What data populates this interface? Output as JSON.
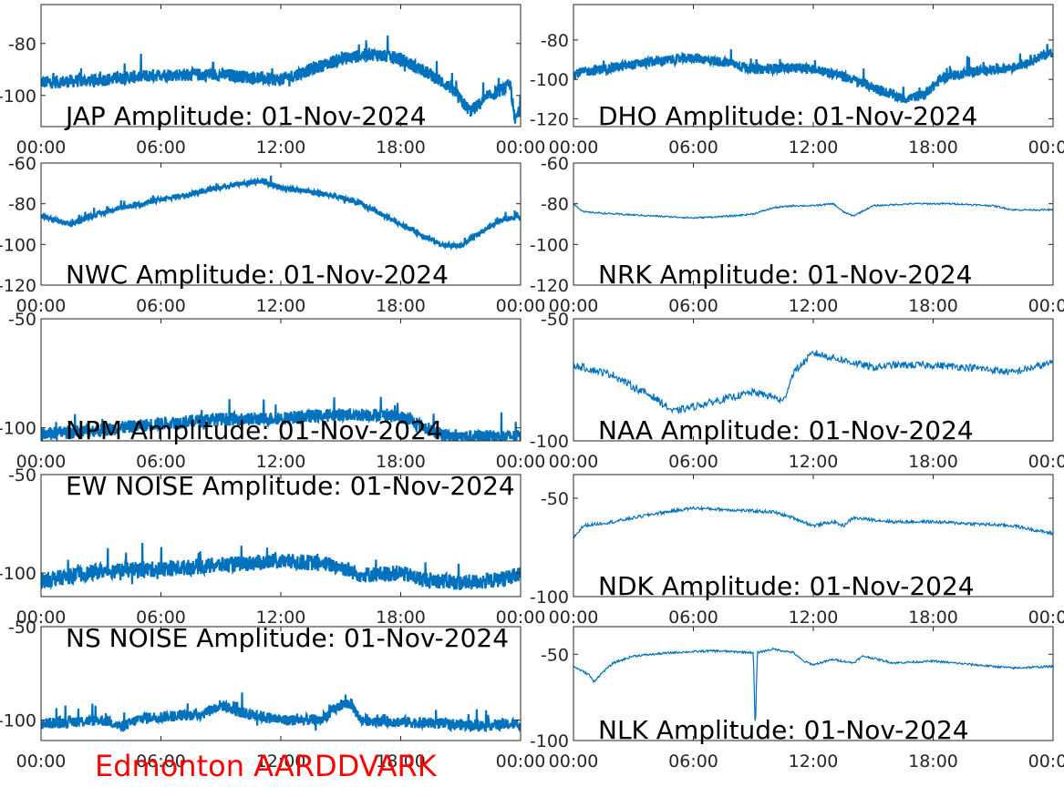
{
  "footer_label": "Edmonton AARDDVARK",
  "colors": {
    "series": "#0072bd",
    "footer": "#ff0000",
    "axes": "#262626"
  },
  "chart_data": [
    {
      "type": "line",
      "panel": "left-1",
      "title": "JAP Amplitude: 01-Nov-2024",
      "xlim": [
        0,
        24
      ],
      "ylim": [
        -112,
        -65
      ],
      "yticks": [
        -80,
        -100
      ],
      "ytick_labels": [
        "-80",
        "-100"
      ],
      "xticks": [
        0,
        6,
        12,
        18,
        24
      ],
      "xtick_labels": [
        "00:00",
        "06:00",
        "12:00",
        "18:00",
        "00:00"
      ],
      "noise": 2.5,
      "dense": true,
      "series": [
        {
          "points": [
            [
              0,
              -95
            ],
            [
              3,
              -94
            ],
            [
              6,
              -92
            ],
            [
              9,
              -92
            ],
            [
              12,
              -94
            ],
            [
              13.5,
              -90
            ],
            [
              15,
              -86
            ],
            [
              16.5,
              -84
            ],
            [
              18,
              -86
            ],
            [
              19.5,
              -92
            ],
            [
              20.5,
              -97
            ],
            [
              21,
              -102
            ],
            [
              21.5,
              -106
            ],
            [
              22.5,
              -100
            ],
            [
              23.5,
              -96
            ],
            [
              23.7,
              -110
            ],
            [
              24,
              -105
            ]
          ]
        }
      ]
    },
    {
      "type": "line",
      "panel": "right-1",
      "title": "DHO Amplitude: 01-Nov-2024",
      "xlim": [
        0,
        24
      ],
      "ylim": [
        -124,
        -62
      ],
      "yticks": [
        -80,
        -100,
        -120
      ],
      "ytick_labels": [
        "-80",
        "-100",
        "-120"
      ],
      "xticks": [
        0,
        6,
        12,
        18,
        24
      ],
      "xtick_labels": [
        "00:00",
        "06:00",
        "12:00",
        "18:00",
        "00:00"
      ],
      "noise": 2.5,
      "dense": true,
      "series": [
        {
          "points": [
            [
              0,
              -97
            ],
            [
              2,
              -94
            ],
            [
              4,
              -91
            ],
            [
              6,
              -89
            ],
            [
              8,
              -92
            ],
            [
              9,
              -95
            ],
            [
              11,
              -94
            ],
            [
              12,
              -95
            ],
            [
              13,
              -97
            ],
            [
              14,
              -100
            ],
            [
              15,
              -104
            ],
            [
              16.5,
              -110
            ],
            [
              17.5,
              -108
            ],
            [
              18.5,
              -99
            ],
            [
              20,
              -96
            ],
            [
              22,
              -94
            ],
            [
              24,
              -86
            ]
          ]
        }
      ]
    },
    {
      "type": "line",
      "panel": "left-2",
      "title": "NWC Amplitude: 01-Nov-2024",
      "xlim": [
        0,
        24
      ],
      "ylim": [
        -120,
        -60
      ],
      "yticks": [
        -60,
        -80,
        -100,
        -120
      ],
      "ytick_labels": [
        "-60",
        "-80",
        "-100",
        "-120"
      ],
      "xticks": [
        0,
        6,
        12,
        18,
        24
      ],
      "xtick_labels": [
        "00:00",
        "06:00",
        "12:00",
        "18:00",
        "00:00"
      ],
      "noise": 1.2,
      "dense": true,
      "series": [
        {
          "points": [
            [
              0,
              -86
            ],
            [
              1,
              -89
            ],
            [
              1.5,
              -90
            ],
            [
              2.5,
              -86
            ],
            [
              4,
              -82
            ],
            [
              6,
              -78
            ],
            [
              8,
              -74
            ],
            [
              10,
              -70
            ],
            [
              11,
              -69
            ],
            [
              12,
              -72
            ],
            [
              14,
              -75
            ],
            [
              15,
              -77
            ],
            [
              16,
              -80
            ],
            [
              17,
              -85
            ],
            [
              18,
              -90
            ],
            [
              19,
              -95
            ],
            [
              20,
              -100
            ],
            [
              21,
              -101
            ],
            [
              22,
              -94
            ],
            [
              23,
              -88
            ],
            [
              24,
              -86
            ]
          ]
        }
      ]
    },
    {
      "type": "line",
      "panel": "right-2",
      "title": "NRK Amplitude: 01-Nov-2024",
      "xlim": [
        0,
        24
      ],
      "ylim": [
        -120,
        -60
      ],
      "yticks": [
        -60,
        -80,
        -100,
        -120
      ],
      "ytick_labels": [
        "-60",
        "-80",
        "-100",
        "-120"
      ],
      "xticks": [
        0,
        6,
        12,
        18,
        24
      ],
      "xtick_labels": [
        "00:00",
        "06:00",
        "12:00",
        "18:00",
        "00:00"
      ],
      "noise": 0.4,
      "dense": false,
      "series": [
        {
          "points": [
            [
              0,
              -80
            ],
            [
              0.5,
              -84
            ],
            [
              2,
              -85
            ],
            [
              4,
              -86
            ],
            [
              6,
              -87
            ],
            [
              8,
              -86
            ],
            [
              9,
              -85
            ],
            [
              10,
              -82
            ],
            [
              11,
              -81
            ],
            [
              12,
              -81
            ],
            [
              13,
              -80
            ],
            [
              13.5,
              -84
            ],
            [
              14,
              -86
            ],
            [
              15,
              -81
            ],
            [
              17,
              -80
            ],
            [
              19,
              -80
            ],
            [
              21,
              -81
            ],
            [
              22,
              -83
            ],
            [
              24,
              -83
            ]
          ]
        }
      ]
    },
    {
      "type": "line",
      "panel": "left-3",
      "title": "NPM Amplitude: 01-Nov-2024",
      "xlim": [
        0,
        24
      ],
      "ylim": [
        -106,
        -50
      ],
      "yticks": [
        -50,
        -100
      ],
      "ytick_labels": [
        "-50",
        "-100"
      ],
      "xticks": [
        0,
        6,
        12,
        18,
        24
      ],
      "xtick_labels": [
        "00:00",
        "06:00",
        "12:00",
        "18:00",
        "00:00"
      ],
      "noise": 3.0,
      "dense": true,
      "series": [
        {
          "points": [
            [
              0,
              -103
            ],
            [
              3,
              -101
            ],
            [
              6,
              -98
            ],
            [
              9,
              -96
            ],
            [
              11,
              -96
            ],
            [
              13,
              -95
            ],
            [
              15,
              -94
            ],
            [
              17,
              -94
            ],
            [
              18,
              -95
            ],
            [
              19,
              -99
            ],
            [
              20,
              -103
            ],
            [
              21,
              -104
            ],
            [
              24,
              -104
            ]
          ]
        }
      ]
    },
    {
      "type": "line",
      "panel": "right-3",
      "title": "NAA Amplitude: 01-Nov-2024",
      "xlim": [
        0,
        24
      ],
      "ylim": [
        -100,
        -50
      ],
      "yticks": [
        -50,
        -100
      ],
      "ytick_labels": [
        "-50",
        "-100"
      ],
      "xticks": [
        0,
        6,
        12,
        18,
        24
      ],
      "xtick_labels": [
        "00:00",
        "06:00",
        "12:00",
        "18:00",
        "00:00"
      ],
      "noise": 1.5,
      "dense": false,
      "series": [
        {
          "points": [
            [
              0,
              -69
            ],
            [
              1,
              -71
            ],
            [
              2,
              -73
            ],
            [
              3,
              -78
            ],
            [
              4,
              -82
            ],
            [
              5,
              -88
            ],
            [
              6,
              -86
            ],
            [
              7,
              -84
            ],
            [
              8,
              -82
            ],
            [
              9,
              -80
            ],
            [
              10,
              -82
            ],
            [
              10.5,
              -84
            ],
            [
              11,
              -72
            ],
            [
              12,
              -64
            ],
            [
              13,
              -66
            ],
            [
              14,
              -68
            ],
            [
              15,
              -70
            ],
            [
              16,
              -69
            ],
            [
              18,
              -69
            ],
            [
              20,
              -70
            ],
            [
              22,
              -72
            ],
            [
              23,
              -70
            ],
            [
              24,
              -68
            ]
          ]
        }
      ]
    },
    {
      "type": "line",
      "panel": "left-4",
      "title": "EW NOISE Amplitude: 01-Nov-2024",
      "xlim": [
        0,
        24
      ],
      "ylim": [
        -112,
        -50
      ],
      "yticks": [
        -50,
        -100
      ],
      "ytick_labels": [
        "-50",
        "-100"
      ],
      "xticks": [
        0,
        6,
        12,
        18,
        24
      ],
      "xtick_labels": [
        "00:00",
        "06:00",
        "12:00",
        "18:00",
        "00:00"
      ],
      "noise": 4.0,
      "dense": true,
      "series": [
        {
          "points": [
            [
              0,
              -104
            ],
            [
              3,
              -99
            ],
            [
              6,
              -98
            ],
            [
              9,
              -96
            ],
            [
              12,
              -94
            ],
            [
              14,
              -95
            ],
            [
              15,
              -97
            ],
            [
              16,
              -101
            ],
            [
              18,
              -100
            ],
            [
              19,
              -103
            ],
            [
              21,
              -105
            ],
            [
              22.5,
              -104
            ],
            [
              24,
              -101
            ]
          ]
        }
      ]
    },
    {
      "type": "line",
      "panel": "right-4",
      "title": "NDK Amplitude: 01-Nov-2024",
      "xlim": [
        0,
        24
      ],
      "ylim": [
        -100,
        -38
      ],
      "yticks": [
        -50,
        -100
      ],
      "ytick_labels": [
        "-50",
        "-100"
      ],
      "xticks": [
        0,
        6,
        12,
        18,
        24
      ],
      "xtick_labels": [
        "00:00",
        "06:00",
        "12:00",
        "18:00",
        "00:00"
      ],
      "noise": 0.8,
      "dense": false,
      "series": [
        {
          "points": [
            [
              0,
              -70
            ],
            [
              0.5,
              -64
            ],
            [
              2,
              -62
            ],
            [
              3,
              -60
            ],
            [
              4,
              -58
            ],
            [
              6,
              -55
            ],
            [
              8,
              -56
            ],
            [
              10,
              -57
            ],
            [
              11,
              -60
            ],
            [
              12,
              -64
            ],
            [
              13,
              -62
            ],
            [
              13.5,
              -64
            ],
            [
              14,
              -60
            ],
            [
              16,
              -62
            ],
            [
              18,
              -62
            ],
            [
              20,
              -63
            ],
            [
              22,
              -64
            ],
            [
              24,
              -68
            ]
          ]
        }
      ]
    },
    {
      "type": "line",
      "panel": "left-5",
      "title": "NS NOISE Amplitude: 01-Nov-2024",
      "xlim": [
        0,
        24
      ],
      "ylim": [
        -111,
        -50
      ],
      "yticks": [
        -50,
        -100
      ],
      "ytick_labels": [
        "-50",
        "-100"
      ],
      "xticks": [
        0,
        6,
        12,
        18,
        24
      ],
      "xtick_labels": [
        "00:00",
        "06:00",
        "12:00",
        "18:00",
        "00:00"
      ],
      "noise": 3.0,
      "dense": true,
      "series": [
        {
          "points": [
            [
              0,
              -102
            ],
            [
              3,
              -100
            ],
            [
              3.5,
              -101
            ],
            [
              4,
              -104
            ],
            [
              5,
              -99
            ],
            [
              8,
              -97
            ],
            [
              9,
              -92
            ],
            [
              10,
              -96
            ],
            [
              12,
              -100
            ],
            [
              14,
              -100
            ],
            [
              15,
              -92
            ],
            [
              15.5,
              -91
            ],
            [
              16,
              -100
            ],
            [
              18,
              -101
            ],
            [
              20,
              -102
            ],
            [
              22,
              -103
            ],
            [
              24,
              -102
            ]
          ]
        }
      ]
    },
    {
      "type": "line",
      "panel": "right-5",
      "title": "NLK Amplitude: 01-Nov-2024",
      "xlim": [
        0,
        24
      ],
      "ylim": [
        -100,
        -34
      ],
      "yticks": [
        -50,
        -100
      ],
      "ytick_labels": [
        "-50",
        "-100"
      ],
      "xticks": [
        0,
        6,
        12,
        18,
        24
      ],
      "xtick_labels": [
        "00:00",
        "06:00",
        "12:00",
        "18:00",
        "00:00"
      ],
      "noise": 0.6,
      "dense": false,
      "series": [
        {
          "points": [
            [
              0,
              -57
            ],
            [
              0.8,
              -62
            ],
            [
              1,
              -66
            ],
            [
              1.5,
              -60
            ],
            [
              2,
              -55
            ],
            [
              3,
              -51
            ],
            [
              5,
              -49
            ],
            [
              7,
              -48
            ],
            [
              9,
              -49
            ],
            [
              9.1,
              -95
            ],
            [
              9.2,
              -49
            ],
            [
              10,
              -47
            ],
            [
              11,
              -49
            ],
            [
              11.5,
              -54
            ],
            [
              12,
              -56
            ],
            [
              13,
              -53
            ],
            [
              14,
              -55
            ],
            [
              14.5,
              -51
            ],
            [
              16,
              -55
            ],
            [
              18,
              -54
            ],
            [
              20,
              -56
            ],
            [
              22,
              -58
            ],
            [
              24,
              -57
            ]
          ]
        }
      ]
    }
  ]
}
